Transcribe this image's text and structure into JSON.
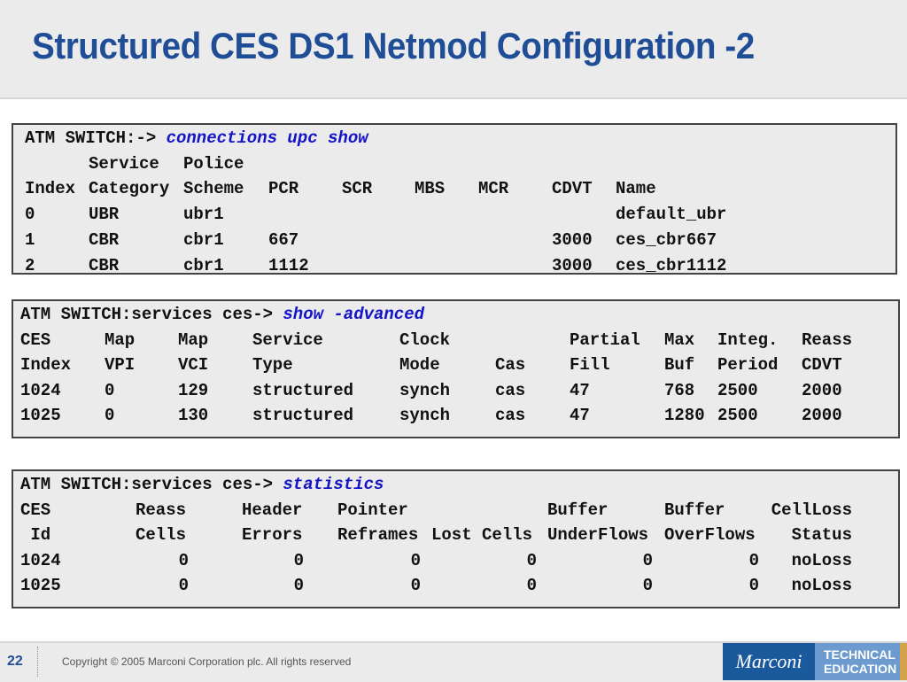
{
  "title": "Structured CES DS1 Netmod Configuration -2",
  "tables": [
    {
      "prompt": "ATM SWITCH:-> ",
      "command": "connections upc show",
      "rows": [
        [
          "",
          "Service",
          "Police",
          "",
          "",
          "",
          "",
          "",
          ""
        ],
        [
          "Index",
          "Category",
          "Scheme",
          "PCR",
          "SCR",
          "MBS",
          "MCR",
          "CDVT",
          "Name"
        ],
        [
          "0",
          "UBR",
          "ubr1",
          "",
          "",
          "",
          "",
          "",
          "default_ubr"
        ],
        [
          "1",
          "CBR",
          "cbr1",
          "667",
          "",
          "",
          "",
          "3000",
          "ces_cbr667"
        ],
        [
          "2",
          "CBR",
          "cbr1",
          "1112",
          "",
          "",
          "",
          "3000",
          "ces_cbr1112"
        ]
      ]
    },
    {
      "prompt": "ATM SWITCH:services ces-> ",
      "command": "show -advanced",
      "rows": [
        [
          "CES",
          "Map",
          "Map",
          "Service",
          "Clock",
          "",
          "Partial",
          "Max",
          "Integ.",
          "Reass"
        ],
        [
          "Index",
          "VPI",
          "VCI",
          "Type",
          "Mode",
          "Cas",
          "Fill",
          "Buf",
          "Period",
          "CDVT"
        ],
        [
          "1024",
          "0",
          "129",
          "structured",
          "synch",
          "cas",
          "47",
          "768",
          "2500",
          "2000"
        ],
        [
          "1025",
          "0",
          "130",
          "structured",
          "synch",
          "cas",
          "47",
          "1280",
          "2500",
          "2000"
        ]
      ]
    },
    {
      "prompt": "ATM SWITCH:services ces-> ",
      "command": "statistics",
      "rows": [
        [
          "CES",
          "Reass",
          "Header",
          "Pointer",
          "",
          "Buffer",
          "Buffer",
          "CellLoss"
        ],
        [
          " Id",
          "Cells",
          "Errors",
          "Reframes",
          "Lost Cells",
          "UnderFlows",
          "OverFlows",
          "Status"
        ],
        [
          "1024",
          "0",
          "0",
          "0",
          "0",
          "0",
          "0",
          "noLoss"
        ],
        [
          "1025",
          "0",
          "0",
          "0",
          "0",
          "0",
          "0",
          "noLoss"
        ]
      ]
    }
  ],
  "footer": {
    "page": "22",
    "copyright": "Copyright © 2005 Marconi Corporation plc. All rights reserved",
    "logo": "Marconi",
    "badge_line1": "TECHNICAL",
    "badge_line2": "EDUCATION"
  }
}
